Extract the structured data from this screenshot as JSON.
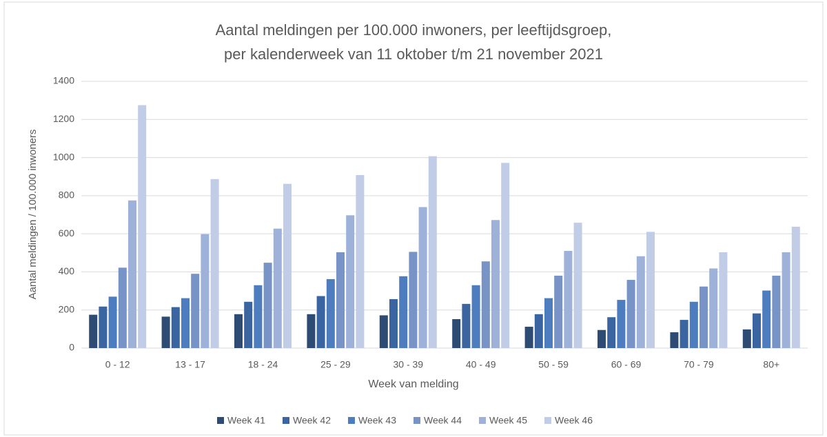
{
  "chart_data": {
    "type": "bar",
    "title": [
      "Aantal meldingen per 100.000 inwoners, per leeftijdsgroep,",
      "per kalenderweek van 11 oktober t/m 21 november 2021"
    ],
    "x_label": "Week van melding",
    "y_label": "Aantal meldingen / 100.000 inwoners",
    "categories": [
      "0 - 12",
      "13 - 17",
      "18 - 24",
      "25 - 29",
      "30 - 39",
      "40 - 49",
      "50 - 59",
      "60 - 69",
      "70 - 79",
      "80+"
    ],
    "series": [
      {
        "name": "Week 41",
        "color": "#2e4b73",
        "values": [
          175,
          165,
          178,
          178,
          172,
          152,
          112,
          95,
          83,
          98
        ]
      },
      {
        "name": "Week 42",
        "color": "#3a65a0",
        "values": [
          218,
          215,
          243,
          273,
          257,
          232,
          178,
          162,
          148,
          182
        ]
      },
      {
        "name": "Week 43",
        "color": "#4d7dbf",
        "values": [
          270,
          262,
          330,
          362,
          377,
          330,
          262,
          253,
          243,
          302
        ]
      },
      {
        "name": "Week 44",
        "color": "#7893c6",
        "values": [
          422,
          390,
          448,
          503,
          505,
          455,
          380,
          358,
          323,
          380
        ]
      },
      {
        "name": "Week 45",
        "color": "#9db1d9",
        "values": [
          775,
          598,
          627,
          697,
          740,
          672,
          510,
          482,
          418,
          503
        ]
      },
      {
        "name": "Week 46",
        "color": "#c1cce6",
        "values": [
          1275,
          887,
          862,
          908,
          1007,
          972,
          658,
          610,
          503,
          637
        ]
      }
    ],
    "ylim": [
      0,
      1400
    ],
    "yticks": [
      0,
      200,
      400,
      600,
      800,
      1000,
      1200,
      1400
    ],
    "grid": true,
    "legend": "bottom"
  }
}
